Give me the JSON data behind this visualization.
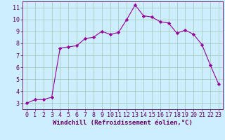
{
  "x": [
    0,
    1,
    2,
    3,
    4,
    5,
    6,
    7,
    8,
    9,
    10,
    11,
    12,
    13,
    14,
    15,
    16,
    17,
    18,
    19,
    20,
    21,
    22,
    23
  ],
  "y": [
    3.0,
    3.3,
    3.3,
    3.5,
    7.6,
    7.7,
    7.8,
    8.4,
    8.5,
    9.0,
    8.75,
    8.9,
    10.0,
    11.2,
    10.3,
    10.2,
    9.8,
    9.7,
    8.85,
    9.1,
    8.75,
    7.9,
    6.2,
    4.6
  ],
  "line_color": "#990099",
  "marker": "D",
  "marker_size": 2.2,
  "bg_color": "#cceeff",
  "grid_color": "#aaccbb",
  "xlabel": "Windchill (Refroidissement éolien,°C)",
  "xlabel_color": "#660066",
  "xlabel_fontsize": 6.5,
  "tick_color": "#660066",
  "tick_fontsize": 6.0,
  "xlim": [
    -0.5,
    23.5
  ],
  "ylim": [
    2.5,
    11.5
  ],
  "yticks": [
    3,
    4,
    5,
    6,
    7,
    8,
    9,
    10,
    11
  ],
  "xticks": [
    0,
    1,
    2,
    3,
    4,
    5,
    6,
    7,
    8,
    9,
    10,
    11,
    12,
    13,
    14,
    15,
    16,
    17,
    18,
    19,
    20,
    21,
    22,
    23
  ]
}
